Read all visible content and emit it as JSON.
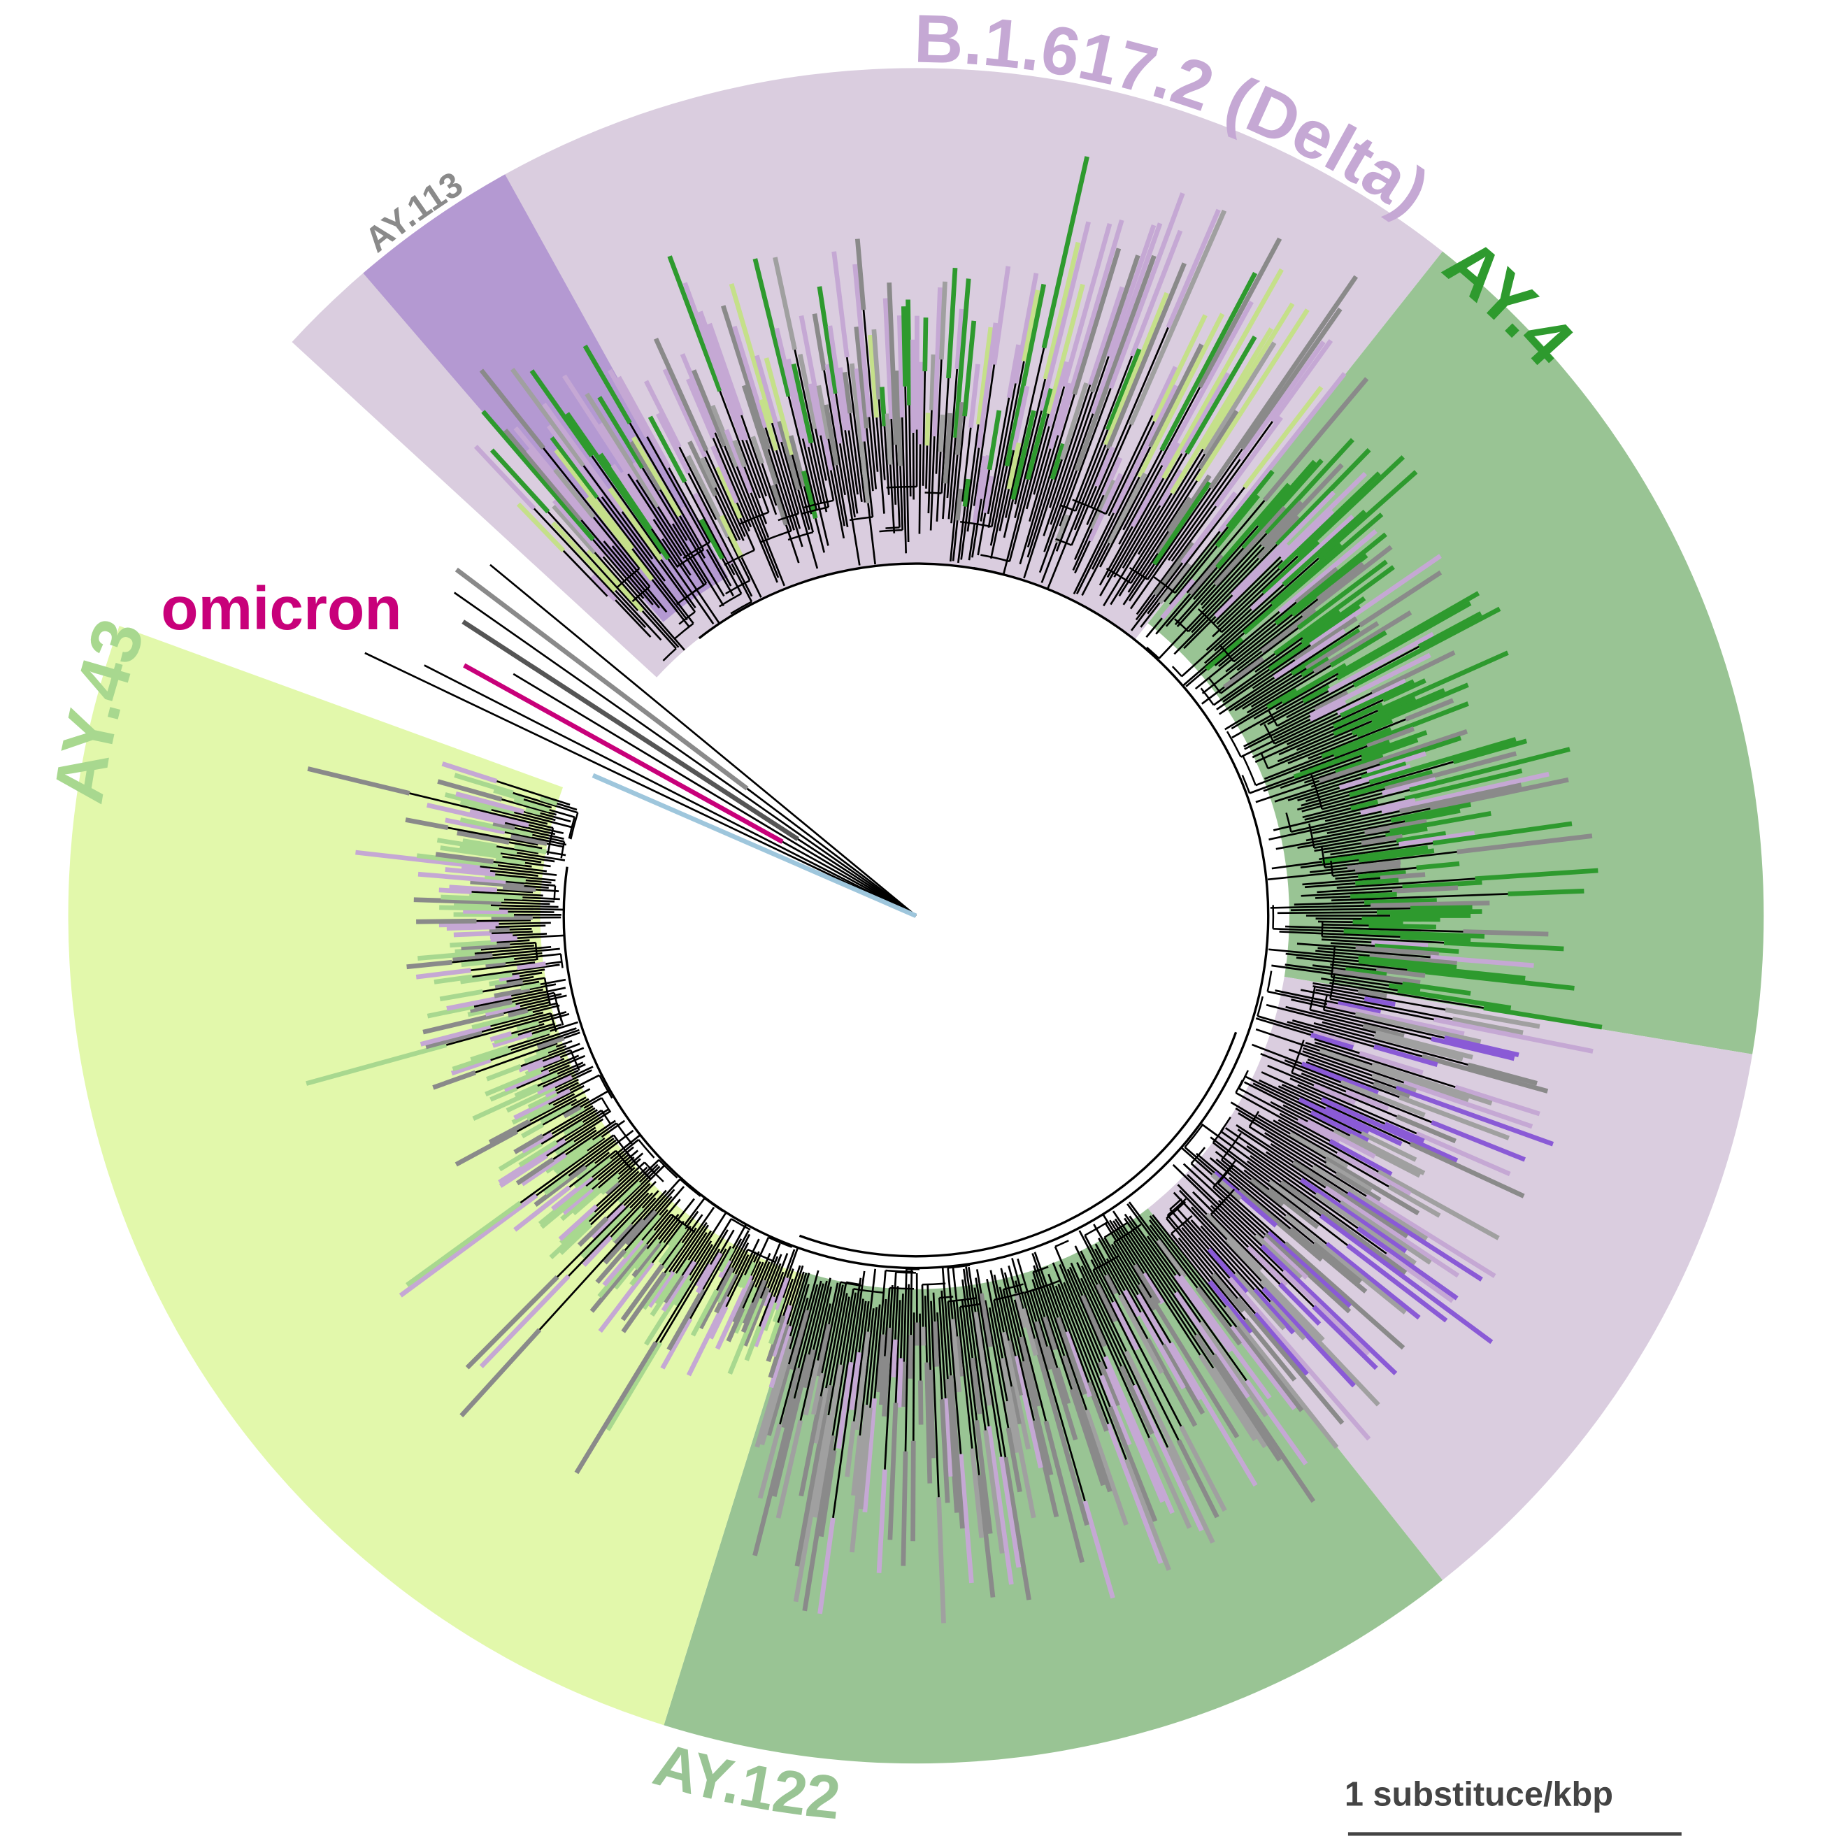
{
  "clades": [
    {
      "label": "B.1.617.2 (Delta)"
    },
    {
      "label": "AY.113"
    },
    {
      "label": "AY.4"
    },
    {
      "label": "AY.122"
    },
    {
      "label": "AY.43"
    }
  ],
  "outgroup_label": "omicron",
  "scale_bar_label": "1 substituce/kbp"
}
